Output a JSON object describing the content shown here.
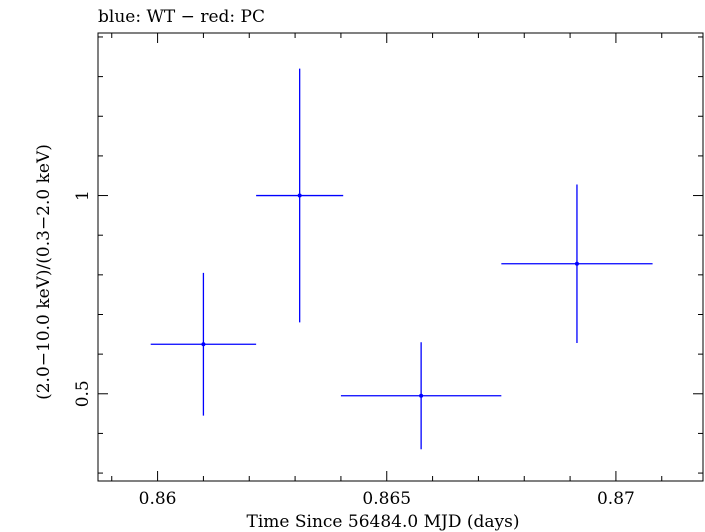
{
  "chart_data": {
    "type": "scatter",
    "title": "blue: WT − red: PC",
    "xlabel": "Time Since 56484.0 MJD (days)",
    "ylabel": "(2.0−10.0 keV)/(0.3−2.0 keV)",
    "xlim": [
      0.8587,
      0.8719
    ],
    "ylim": [
      0.28,
      1.41
    ],
    "x_ticks": [
      {
        "value": 0.86,
        "label": "0.86"
      },
      {
        "value": 0.865,
        "label": "0.865"
      },
      {
        "value": 0.87,
        "label": "0.87"
      }
    ],
    "y_ticks": [
      {
        "value": 0.5,
        "label": "0.5"
      },
      {
        "value": 1.0,
        "label": "1"
      }
    ],
    "series": [
      {
        "name": "WT",
        "color": "#0000ff",
        "points": [
          {
            "x": 0.861,
            "y": 0.625,
            "xerr_low": 0.00115,
            "xerr_high": 0.00115,
            "yerr_low": 0.18,
            "yerr_high": 0.18
          },
          {
            "x": 0.8631,
            "y": 1.0,
            "xerr_low": 0.00095,
            "xerr_high": 0.00095,
            "yerr_low": 0.32,
            "yerr_high": 0.32
          },
          {
            "x": 0.86575,
            "y": 0.495,
            "xerr_low": 0.00175,
            "xerr_high": 0.00175,
            "yerr_low": 0.135,
            "yerr_high": 0.135
          },
          {
            "x": 0.86915,
            "y": 0.828,
            "xerr_low": 0.00165,
            "xerr_high": 0.00165,
            "yerr_low": 0.2,
            "yerr_high": 0.2
          }
        ]
      }
    ]
  }
}
